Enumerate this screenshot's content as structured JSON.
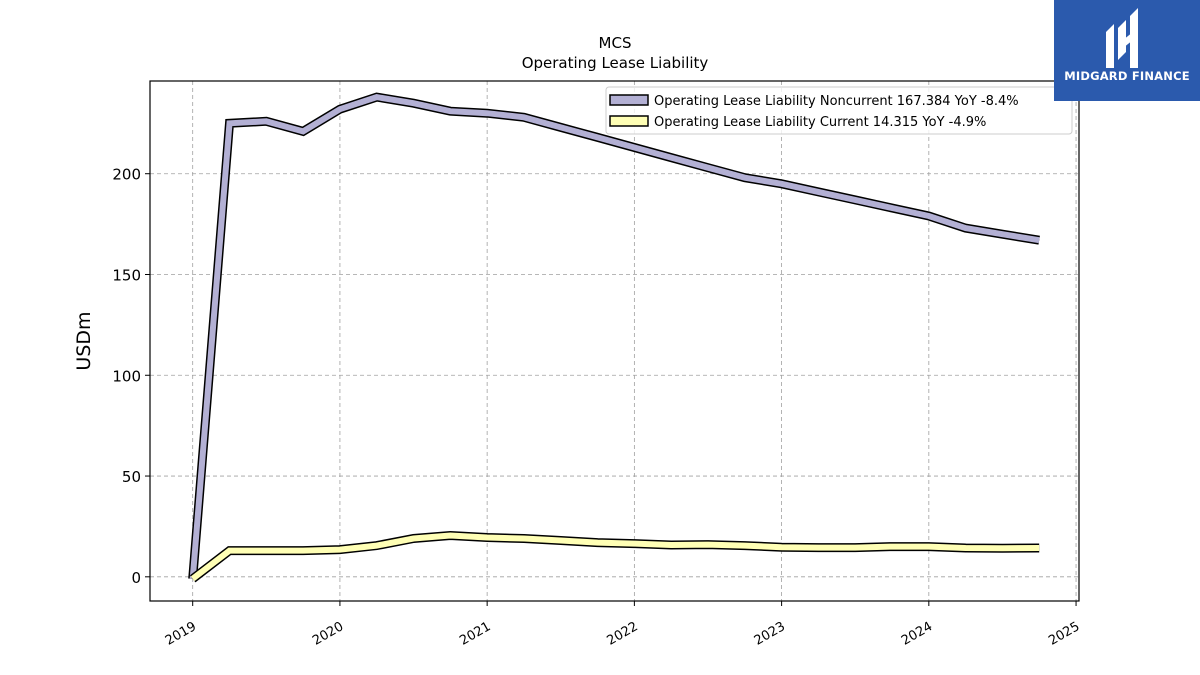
{
  "chart_data": {
    "type": "line",
    "title": "MCS",
    "subtitle": "Operating Lease Liability",
    "ylabel": "USDm",
    "xlabel": "",
    "ylim": [
      -12,
      246
    ],
    "xlim": [
      2018.71,
      2025.02
    ],
    "y_ticks": [
      0,
      50,
      100,
      150,
      200
    ],
    "x_ticks": [
      "2019",
      "2020",
      "2021",
      "2022",
      "2023",
      "2024",
      "2025"
    ],
    "grid": true,
    "legend_position": "top-right",
    "series": [
      {
        "name": "Operating Lease Liability Noncurrent  167.384 YoY -8.4%",
        "color": "#b3b0d4",
        "x": [
          2019.0,
          2019.25,
          2019.5,
          2019.75,
          2020.0,
          2020.25,
          2020.5,
          2020.75,
          2021.0,
          2021.25,
          2021.5,
          2021.75,
          2022.0,
          2022.25,
          2022.5,
          2022.75,
          2023.0,
          2023.25,
          2023.5,
          2023.75,
          2024.0,
          2024.25,
          2024.5,
          2024.75
        ],
        "y": [
          -1,
          225,
          226,
          221,
          232,
          238,
          235,
          231,
          230,
          228,
          223,
          218,
          213,
          208,
          203,
          198,
          195,
          191,
          187,
          183,
          179,
          173,
          170,
          167
        ]
      },
      {
        "name": "Operating Lease Liability Current  14.315 YoY -4.9%",
        "color": "#ffffb5",
        "x": [
          2019.0,
          2019.25,
          2019.5,
          2019.75,
          2020.0,
          2020.25,
          2020.5,
          2020.75,
          2021.0,
          2021.25,
          2021.5,
          2021.75,
          2022.0,
          2022.25,
          2022.5,
          2022.75,
          2023.0,
          2023.25,
          2023.5,
          2023.75,
          2024.0,
          2024.25,
          2024.5,
          2024.75
        ],
        "y": [
          -1,
          13,
          13,
          13,
          13.5,
          15.5,
          19,
          20.5,
          19.5,
          19,
          18,
          17,
          16.5,
          15.8,
          16,
          15.5,
          14.7,
          14.5,
          14.5,
          15,
          15,
          14.3,
          14.2,
          14.3
        ]
      }
    ]
  },
  "brand": {
    "name": "MIDGARD FINANCE",
    "logo_icon": "midgard-m-icon",
    "bg_color": "#2b5aad"
  }
}
